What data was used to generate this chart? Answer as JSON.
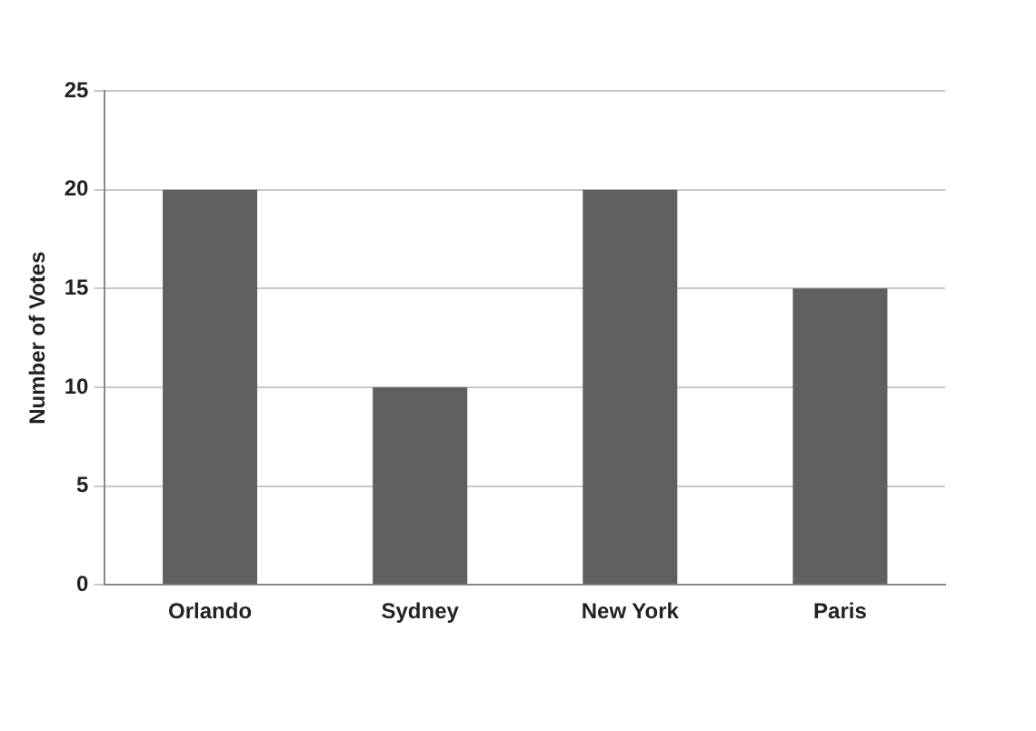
{
  "chart_data": {
    "type": "bar",
    "ylabel": "Number of Votes",
    "categories": [
      "Orlando",
      "Sydney",
      "New York",
      "Paris"
    ],
    "values": [
      20,
      10,
      20,
      15
    ],
    "color": "#606060",
    "ylim": [
      0,
      25
    ],
    "yticks": [
      0,
      5,
      10,
      15,
      20,
      25
    ],
    "grid": "y",
    "legend": false
  }
}
